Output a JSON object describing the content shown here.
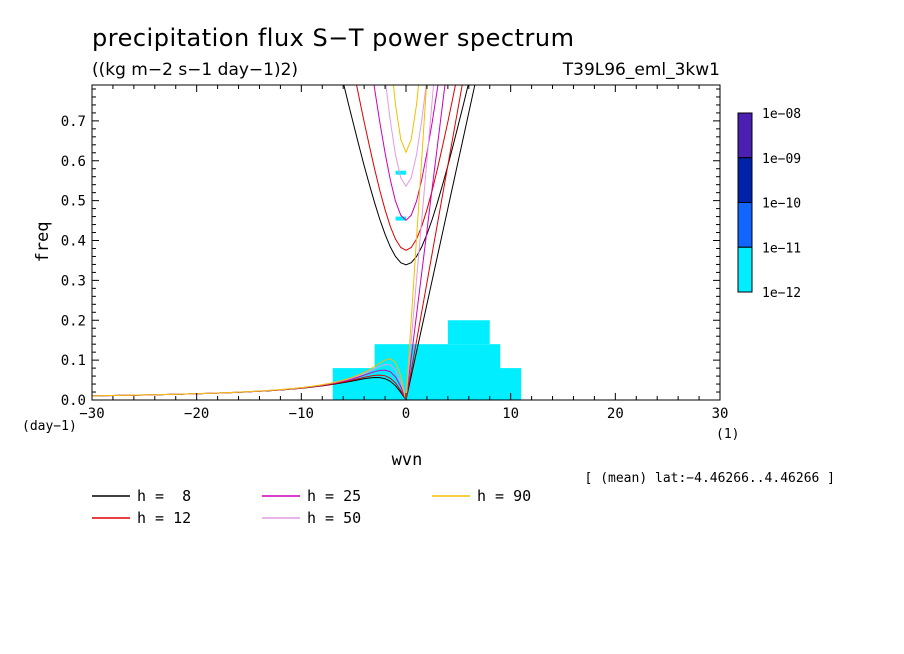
{
  "chart_data": {
    "type": "heatmap",
    "title": "precipitation flux S−T power spectrum",
    "subtitle": "((kg m−2 s−1 day−1)2)",
    "run_label": "T39L96_eml_3kw1",
    "xlabel": "wvn",
    "ylabel": "freq",
    "x_unit": "(1)",
    "y_unit": "(day−1)",
    "xlim": [
      -30,
      30
    ],
    "ylim": [
      0,
      0.79
    ],
    "x_ticks": [
      -30,
      -20,
      -10,
      0,
      10,
      20,
      30
    ],
    "x_tick_labels": [
      "−30",
      "−20",
      "−10",
      "0",
      "10",
      "20",
      "30"
    ],
    "y_ticks": [
      0.0,
      0.1,
      0.2,
      0.3,
      0.4,
      0.5,
      0.6,
      0.7
    ],
    "y_tick_labels": [
      "0.0",
      "0.1",
      "0.2",
      "0.3",
      "0.4",
      "0.5",
      "0.6",
      "0.7"
    ],
    "colorbar": {
      "labels": [
        "1e−08",
        "1e−09",
        "1e−10",
        "1e−11",
        "1e−12"
      ],
      "colors": [
        "#4b1fb2",
        "#0022aa",
        "#1166ff",
        "#00eeff"
      ]
    },
    "footnote": "[ (mean) lat:−4.46266..4.46266 ]",
    "dispersion_curves": [
      {
        "name": "h =  8",
        "h": 8,
        "color": "#000000"
      },
      {
        "name": "h = 12",
        "h": 12,
        "color": "#dd0000"
      },
      {
        "name": "h = 25",
        "h": 25,
        "color": "#cc00bb"
      },
      {
        "name": "h = 50",
        "h": 50,
        "color": "#e39be0"
      },
      {
        "name": "h = 90",
        "h": 90,
        "color": "#f0c000"
      }
    ],
    "power_regions": [
      {
        "x": [
          -7,
          11
        ],
        "y": [
          0.0,
          0.08
        ],
        "level": "1e−12"
      },
      {
        "x": [
          -3,
          9
        ],
        "y": [
          0.06,
          0.14
        ],
        "level": "1e−12"
      },
      {
        "x": [
          4,
          8
        ],
        "y": [
          0.14,
          0.2
        ],
        "level": "1e−12"
      },
      {
        "x": [
          -1,
          0
        ],
        "y": [
          0.565,
          0.575
        ],
        "level": "1e−12"
      },
      {
        "x": [
          -1,
          0
        ],
        "y": [
          0.45,
          0.46
        ],
        "level": "1e−12"
      }
    ]
  }
}
